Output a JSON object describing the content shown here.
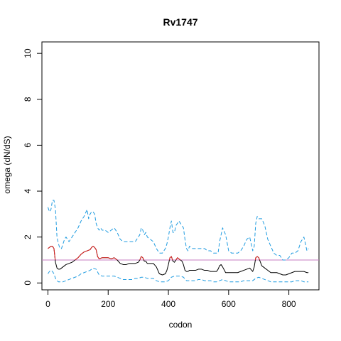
{
  "chart_data": {
    "type": "line",
    "title": "Rv1747",
    "xlabel": "codon",
    "ylabel": "omega (dN/dS)",
    "xlim": [
      -20,
      900
    ],
    "ylim": [
      -0.3,
      10.5
    ],
    "x_ticks": [
      0,
      200,
      400,
      600,
      800
    ],
    "y_ticks": [
      0,
      2,
      4,
      6,
      8,
      10
    ],
    "grid": false,
    "reference_line": {
      "y": 1,
      "color": "#c77cc0"
    },
    "colors": {
      "mean": "#000000",
      "upper": "#1e9be0",
      "lower": "#1e9be0",
      "highlight": "#e0201e"
    },
    "series": [
      {
        "role": "upper",
        "line_style": "dashed",
        "x": [
          0,
          5,
          10,
          15,
          20,
          25,
          30,
          35,
          40,
          45,
          50,
          55,
          60,
          65,
          70,
          80,
          90,
          100,
          110,
          120,
          130,
          135,
          140,
          145,
          150,
          155,
          160,
          165,
          170,
          175,
          180,
          190,
          200,
          210,
          220,
          230,
          240,
          250,
          260,
          270,
          280,
          290,
          300,
          305,
          310,
          315,
          320,
          325,
          330,
          340,
          350,
          360,
          370,
          380,
          390,
          395,
          400,
          405,
          410,
          415,
          420,
          425,
          430,
          435,
          440,
          445,
          450,
          455,
          460,
          465,
          470,
          480,
          490,
          500,
          510,
          520,
          530,
          540,
          550,
          560,
          565,
          570,
          575,
          580,
          590,
          600,
          610,
          620,
          630,
          640,
          650,
          660,
          670,
          680,
          685,
          690,
          695,
          700,
          710,
          720,
          730,
          740,
          750,
          760,
          770,
          780,
          790,
          800,
          810,
          820,
          830,
          840,
          850,
          860,
          865
        ],
        "y": [
          3.3,
          3.1,
          3.2,
          3.6,
          3.6,
          3.2,
          2.0,
          1.7,
          1.5,
          1.5,
          1.7,
          1.9,
          2.0,
          1.9,
          1.8,
          2.0,
          2.2,
          2.4,
          2.7,
          2.9,
          3.2,
          2.8,
          3.0,
          3.1,
          3.1,
          3.0,
          2.6,
          2.4,
          2.3,
          2.4,
          2.3,
          2.3,
          2.2,
          2.3,
          2.4,
          2.2,
          1.9,
          1.8,
          1.8,
          1.8,
          1.8,
          1.8,
          2.0,
          2.1,
          2.4,
          2.3,
          2.1,
          2.2,
          2.0,
          1.9,
          1.8,
          1.5,
          1.3,
          1.3,
          1.5,
          1.7,
          2.0,
          2.4,
          2.7,
          2.2,
          2.2,
          2.5,
          2.6,
          2.7,
          2.6,
          2.5,
          2.4,
          1.9,
          1.5,
          1.4,
          1.6,
          1.5,
          1.5,
          1.5,
          1.5,
          1.5,
          1.4,
          1.4,
          1.3,
          1.3,
          1.3,
          1.8,
          2.1,
          2.4,
          2.1,
          1.4,
          1.3,
          1.3,
          1.3,
          1.4,
          1.6,
          1.9,
          2.0,
          1.4,
          1.6,
          2.6,
          2.9,
          2.8,
          2.8,
          2.5,
          1.9,
          1.6,
          1.3,
          1.2,
          1.2,
          1.0,
          1.0,
          1.1,
          1.3,
          1.3,
          1.4,
          1.8,
          2.0,
          1.4,
          1.5
        ]
      },
      {
        "role": "mean",
        "line_style": "solid",
        "x": [
          0,
          5,
          10,
          15,
          20,
          25,
          30,
          35,
          40,
          45,
          50,
          55,
          60,
          70,
          80,
          90,
          100,
          110,
          120,
          130,
          140,
          145,
          150,
          155,
          160,
          165,
          170,
          180,
          190,
          200,
          210,
          220,
          230,
          240,
          250,
          260,
          270,
          280,
          290,
          300,
          305,
          310,
          315,
          320,
          325,
          330,
          340,
          350,
          360,
          370,
          380,
          390,
          395,
          400,
          405,
          410,
          415,
          420,
          425,
          430,
          435,
          440,
          445,
          450,
          455,
          460,
          465,
          470,
          480,
          490,
          500,
          510,
          520,
          530,
          540,
          550,
          560,
          565,
          570,
          575,
          580,
          590,
          600,
          610,
          620,
          630,
          640,
          650,
          660,
          670,
          680,
          685,
          690,
          695,
          700,
          710,
          720,
          730,
          740,
          750,
          760,
          770,
          780,
          790,
          800,
          810,
          820,
          830,
          840,
          850,
          860,
          865
        ],
        "y": [
          1.5,
          1.55,
          1.6,
          1.6,
          1.5,
          0.9,
          0.65,
          0.6,
          0.6,
          0.65,
          0.7,
          0.75,
          0.8,
          0.85,
          0.9,
          1.0,
          1.1,
          1.25,
          1.35,
          1.4,
          1.45,
          1.55,
          1.6,
          1.55,
          1.45,
          1.15,
          1.05,
          1.1,
          1.1,
          1.1,
          1.05,
          1.1,
          1.0,
          0.85,
          0.8,
          0.8,
          0.85,
          0.85,
          0.85,
          0.9,
          1.0,
          1.15,
          1.1,
          0.95,
          0.95,
          0.85,
          0.85,
          0.85,
          0.7,
          0.4,
          0.35,
          0.4,
          0.55,
          0.8,
          1.1,
          1.15,
          0.95,
          0.9,
          1.0,
          1.1,
          1.05,
          1.0,
          0.95,
          0.8,
          0.55,
          0.5,
          0.5,
          0.55,
          0.55,
          0.55,
          0.6,
          0.6,
          0.55,
          0.55,
          0.5,
          0.5,
          0.5,
          0.6,
          0.75,
          0.8,
          0.7,
          0.45,
          0.45,
          0.45,
          0.45,
          0.45,
          0.5,
          0.55,
          0.6,
          0.65,
          0.5,
          0.7,
          1.1,
          1.15,
          1.1,
          0.75,
          0.65,
          0.55,
          0.45,
          0.45,
          0.45,
          0.4,
          0.35,
          0.35,
          0.4,
          0.45,
          0.5,
          0.5,
          0.5,
          0.5,
          0.45,
          0.45
        ]
      },
      {
        "role": "lower",
        "line_style": "dashed",
        "x": [
          0,
          5,
          10,
          15,
          20,
          25,
          30,
          35,
          40,
          50,
          60,
          70,
          80,
          90,
          100,
          110,
          120,
          130,
          140,
          150,
          160,
          170,
          180,
          190,
          200,
          210,
          220,
          230,
          240,
          250,
          260,
          270,
          280,
          290,
          300,
          310,
          320,
          330,
          340,
          350,
          360,
          370,
          380,
          390,
          400,
          410,
          420,
          430,
          440,
          450,
          460,
          470,
          480,
          490,
          500,
          510,
          520,
          530,
          540,
          550,
          560,
          570,
          580,
          590,
          600,
          610,
          620,
          630,
          640,
          650,
          660,
          670,
          680,
          690,
          700,
          710,
          720,
          730,
          740,
          750,
          760,
          770,
          780,
          790,
          800,
          810,
          820,
          830,
          840,
          850,
          860,
          865
        ],
        "y": [
          0.4,
          0.5,
          0.55,
          0.5,
          0.4,
          0.2,
          0.1,
          0.05,
          0.05,
          0.05,
          0.1,
          0.15,
          0.2,
          0.25,
          0.3,
          0.4,
          0.45,
          0.5,
          0.55,
          0.65,
          0.6,
          0.35,
          0.3,
          0.3,
          0.3,
          0.3,
          0.3,
          0.25,
          0.2,
          0.15,
          0.15,
          0.15,
          0.15,
          0.2,
          0.2,
          0.25,
          0.25,
          0.2,
          0.2,
          0.2,
          0.1,
          0.05,
          0.05,
          0.05,
          0.1,
          0.25,
          0.3,
          0.3,
          0.3,
          0.25,
          0.1,
          0.1,
          0.1,
          0.1,
          0.15,
          0.15,
          0.1,
          0.1,
          0.1,
          0.05,
          0.05,
          0.1,
          0.15,
          0.1,
          0.05,
          0.05,
          0.05,
          0.05,
          0.05,
          0.1,
          0.1,
          0.1,
          0.1,
          0.2,
          0.25,
          0.2,
          0.15,
          0.1,
          0.05,
          0.05,
          0.05,
          0.05,
          0.05,
          0.05,
          0.05,
          0.05,
          0.1,
          0.1,
          0.1,
          0.05,
          0.05,
          0.05
        ]
      }
    ]
  }
}
